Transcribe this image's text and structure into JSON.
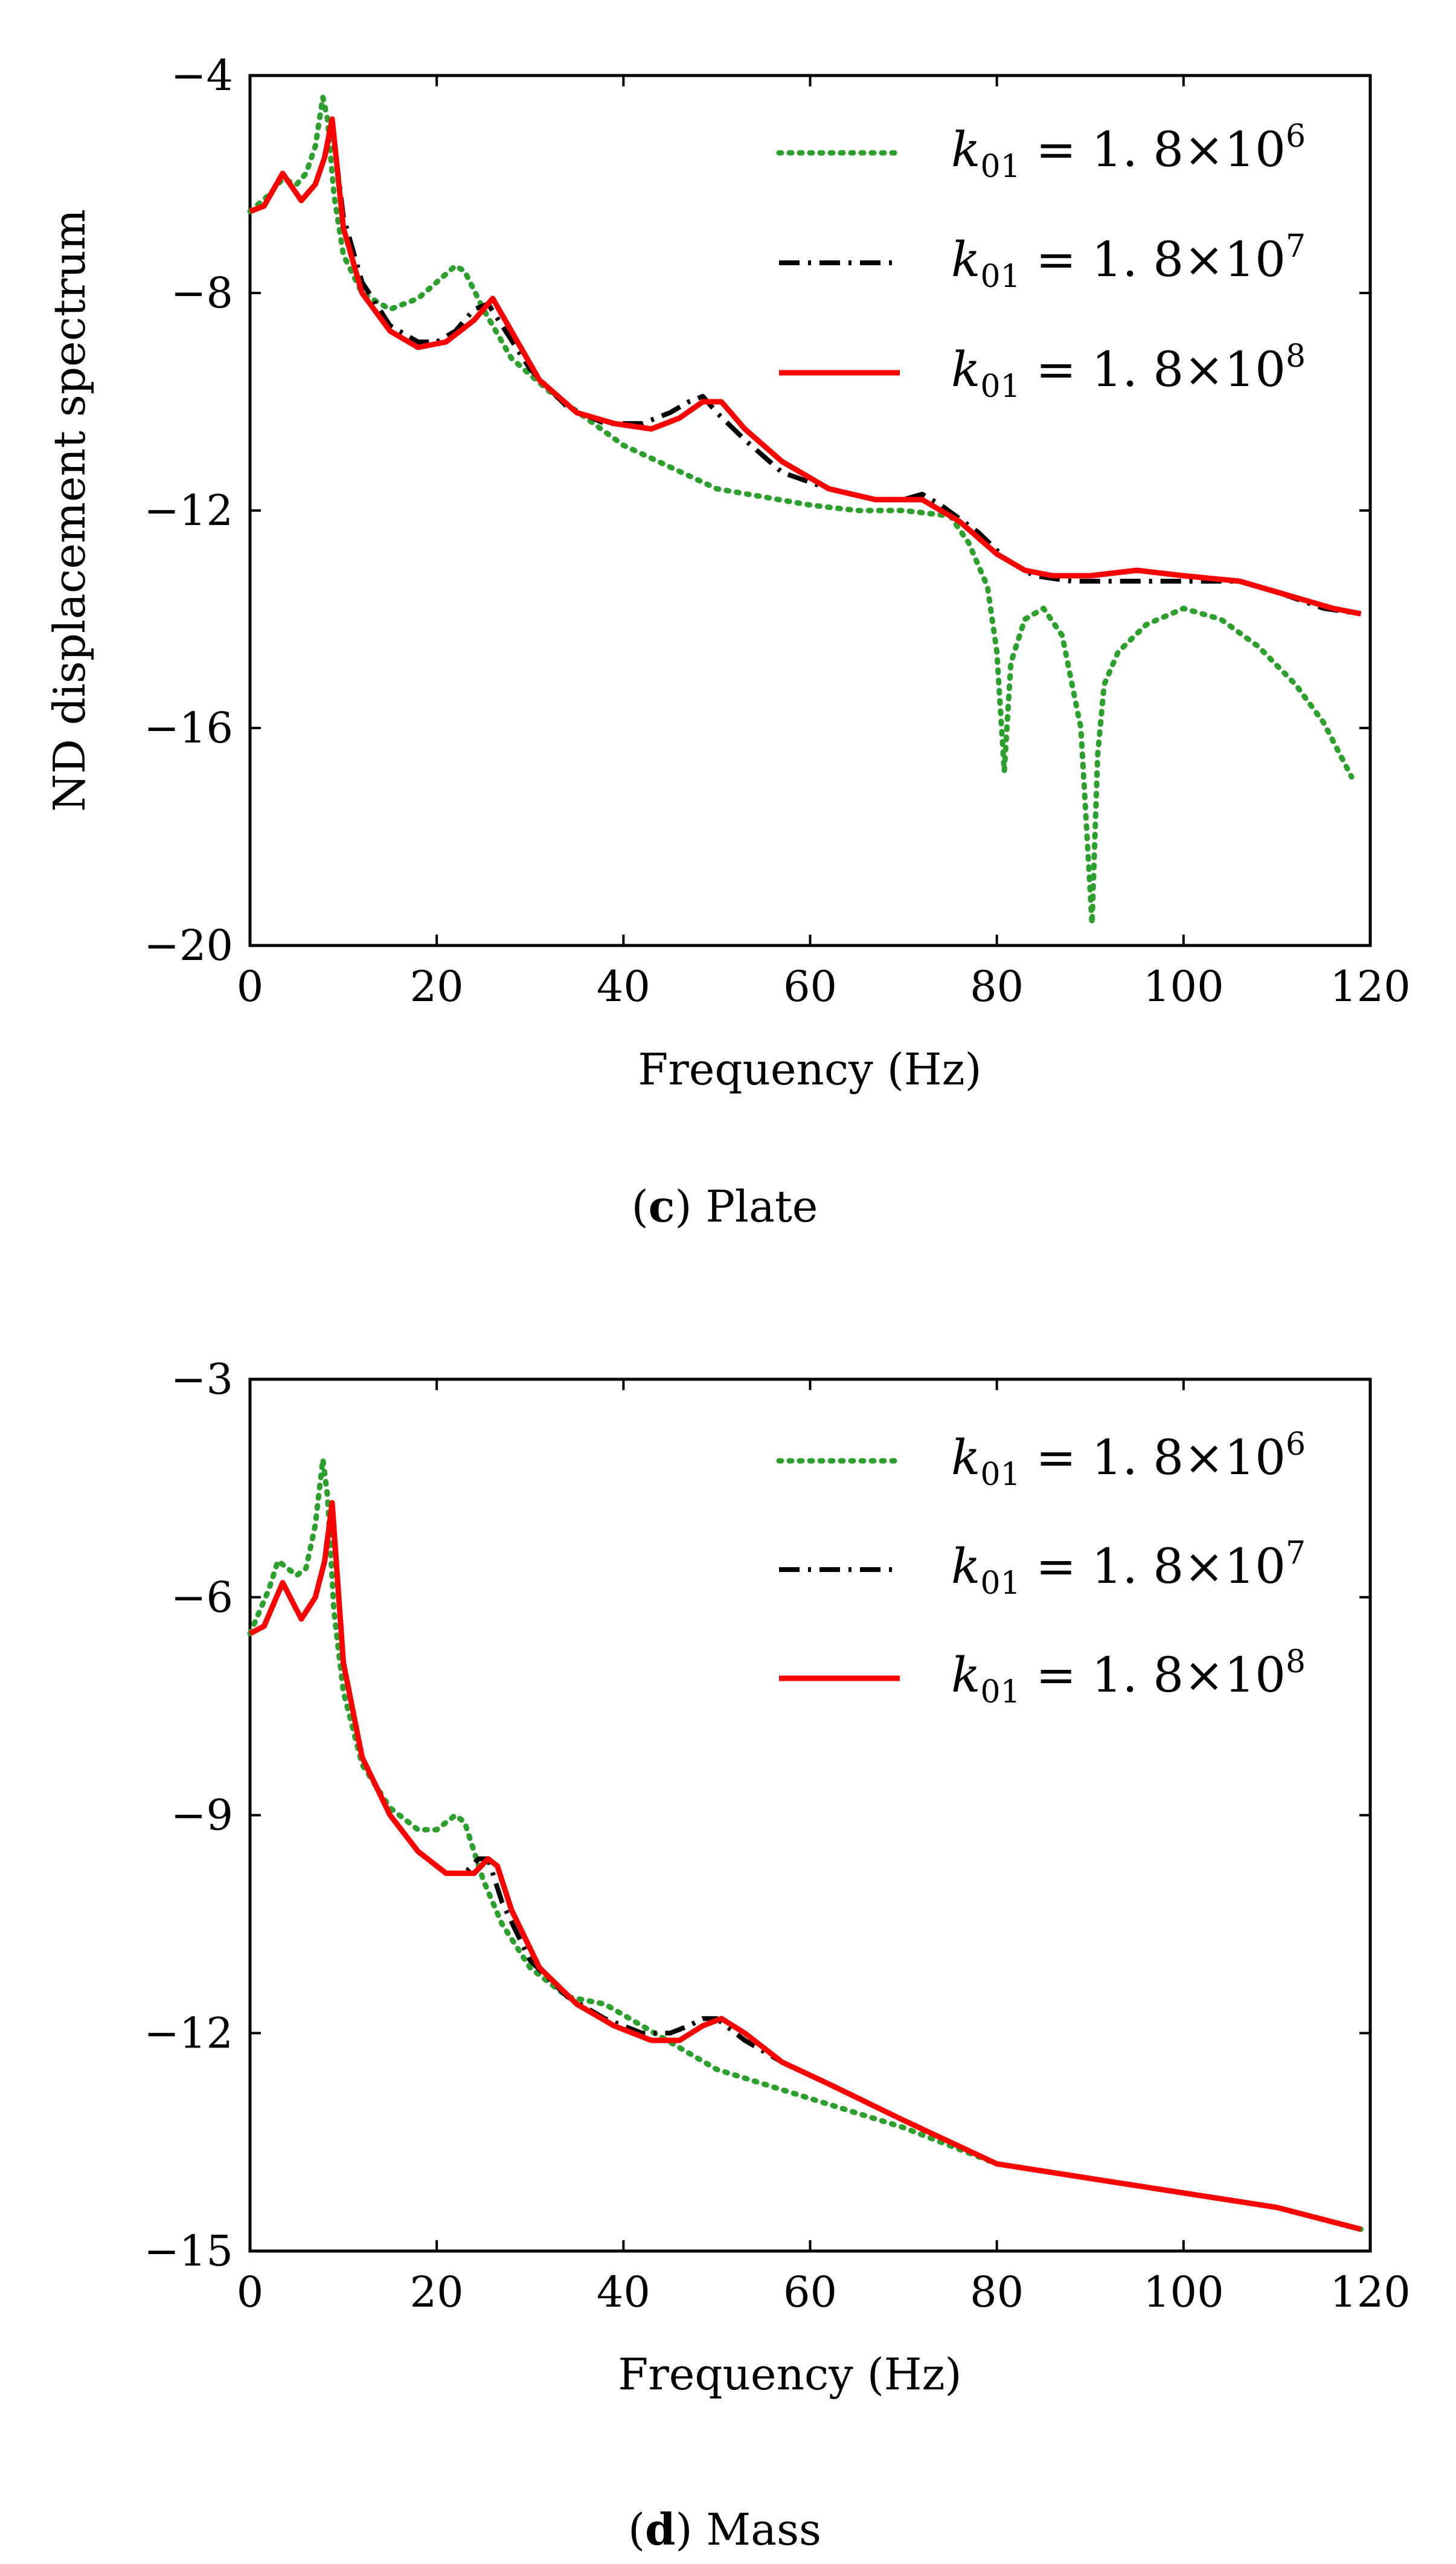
{
  "chart_data": [
    {
      "type": "line",
      "panel_id": "c",
      "caption_letter": "c",
      "caption_text": ") Plate",
      "caption_open": "(",
      "title": "",
      "xlabel": "Frequency (Hz)",
      "ylabel": "ND displacement spectrum",
      "xlim": [
        0,
        120
      ],
      "ylim": [
        -20,
        -4
      ],
      "xticks": [
        0,
        20,
        40,
        60,
        80,
        100,
        120
      ],
      "yticks": [
        -20,
        -16,
        -12,
        -8,
        -4
      ],
      "xtick_labels": [
        "0",
        "20",
        "40",
        "60",
        "80",
        "100",
        "120"
      ],
      "ytick_labels": [
        "−20",
        "−16",
        "−12",
        "−8",
        "−4"
      ],
      "legend_position": "top-right",
      "series": [
        {
          "name": "k01 = 1.8×10^6",
          "legend": {
            "k": "k",
            "sub": "01",
            "eq": " = 1. 8×10",
            "sup": "6"
          },
          "color": "#2ca02c",
          "style": "dotted",
          "x": [
            0,
            2,
            3.5,
            5,
            6,
            7,
            7.8,
            8.3,
            9,
            10,
            12,
            15,
            18,
            20,
            22,
            23,
            25,
            28,
            32,
            40,
            50,
            60,
            65,
            70,
            75,
            77,
            79,
            80,
            80.8,
            81.5,
            83,
            85,
            87,
            89,
            90.2,
            90.8,
            91.5,
            93,
            96,
            100,
            104,
            108,
            112,
            115,
            118
          ],
          "y": [
            -6.5,
            -6.2,
            -5.9,
            -6.0,
            -5.8,
            -5.3,
            -4.4,
            -4.8,
            -6.2,
            -7.3,
            -8.0,
            -8.3,
            -8.1,
            -7.8,
            -7.5,
            -7.6,
            -8.3,
            -9.2,
            -9.8,
            -10.8,
            -11.6,
            -11.9,
            -12.0,
            -12.0,
            -12.1,
            -12.6,
            -13.4,
            -14.6,
            -16.8,
            -14.8,
            -14.0,
            -13.8,
            -14.3,
            -16.0,
            -19.6,
            -16.5,
            -15.2,
            -14.6,
            -14.1,
            -13.8,
            -14.0,
            -14.5,
            -15.2,
            -15.9,
            -16.9
          ]
        },
        {
          "name": "k01 = 1.8×10^7",
          "legend": {
            "k": "k",
            "sub": "01",
            "eq": " = 1. 8×10",
            "sup": "7"
          },
          "color": "#000000",
          "style": "dashdot",
          "x": [
            0,
            1.5,
            3.5,
            5.5,
            7,
            8,
            8.8,
            10,
            12,
            15,
            18,
            20,
            22,
            24,
            25.5,
            27,
            30,
            34,
            38,
            42,
            45,
            47,
            48.5,
            50,
            53,
            57,
            62,
            67,
            70,
            72,
            74,
            78,
            81,
            84,
            88,
            92,
            96,
            100,
            106,
            110,
            115,
            119
          ],
          "y": [
            -6.5,
            -6.4,
            -5.8,
            -6.3,
            -6.0,
            -5.5,
            -4.9,
            -6.6,
            -7.8,
            -8.6,
            -8.9,
            -8.9,
            -8.7,
            -8.3,
            -8.2,
            -8.6,
            -9.4,
            -10.1,
            -10.4,
            -10.4,
            -10.2,
            -10.0,
            -9.9,
            -10.2,
            -10.7,
            -11.3,
            -11.6,
            -11.8,
            -11.8,
            -11.7,
            -11.9,
            -12.4,
            -12.9,
            -13.2,
            -13.3,
            -13.3,
            -13.3,
            -13.3,
            -13.3,
            -13.5,
            -13.8,
            -13.9
          ]
        },
        {
          "name": "k01 = 1.8×10^8",
          "legend": {
            "k": "k",
            "sub": "01",
            "eq": " = 1. 8×10",
            "sup": "8"
          },
          "color": "#ff0000",
          "style": "solid",
          "x": [
            0,
            1.5,
            3.5,
            5.5,
            7,
            8,
            8.8,
            10,
            12,
            15,
            18,
            21,
            24,
            26,
            28,
            31,
            35,
            39,
            43,
            46,
            48.5,
            50.5,
            53,
            57,
            62,
            67,
            70,
            72,
            76,
            80,
            83,
            86,
            90,
            95,
            100,
            106,
            112,
            116,
            119
          ],
          "y": [
            -6.5,
            -6.4,
            -5.8,
            -6.3,
            -6.0,
            -5.5,
            -4.8,
            -6.8,
            -8.0,
            -8.7,
            -9.0,
            -8.9,
            -8.5,
            -8.1,
            -8.7,
            -9.6,
            -10.2,
            -10.4,
            -10.5,
            -10.3,
            -10.0,
            -10.0,
            -10.5,
            -11.1,
            -11.6,
            -11.8,
            -11.8,
            -11.8,
            -12.2,
            -12.8,
            -13.1,
            -13.2,
            -13.2,
            -13.1,
            -13.2,
            -13.3,
            -13.6,
            -13.8,
            -13.9
          ]
        }
      ]
    },
    {
      "type": "line",
      "panel_id": "d",
      "caption_letter": "d",
      "caption_text": ") Mass",
      "caption_open": "(",
      "title": "",
      "xlabel": "Frequency (Hz)",
      "ylabel": "",
      "xlim": [
        0,
        120
      ],
      "ylim": [
        -15,
        -3
      ],
      "xticks": [
        0,
        20,
        40,
        60,
        80,
        100,
        120
      ],
      "yticks": [
        -15,
        -12,
        -9,
        -6,
        -3
      ],
      "xtick_labels": [
        "0",
        "20",
        "40",
        "60",
        "80",
        "100",
        "120"
      ],
      "ytick_labels": [
        "−15",
        "−12",
        "−9",
        "−6",
        "−3"
      ],
      "legend_position": "top-right",
      "series": [
        {
          "name": "k01 = 1.8×10^6",
          "legend": {
            "k": "k",
            "sub": "01",
            "eq": " = 1. 8×10",
            "sup": "6"
          },
          "color": "#2ca02c",
          "style": "dotted",
          "x": [
            0,
            2,
            3,
            5,
            6,
            7,
            7.8,
            8.3,
            9,
            10,
            12,
            15,
            18,
            20,
            22,
            23,
            25,
            27,
            30,
            34,
            38,
            42,
            46,
            50,
            55,
            60,
            70,
            80,
            90,
            100,
            110,
            119
          ],
          "y": [
            -6.5,
            -5.9,
            -5.5,
            -5.7,
            -5.6,
            -5.0,
            -4.1,
            -4.6,
            -6.2,
            -7.3,
            -8.3,
            -8.9,
            -9.2,
            -9.2,
            -9.0,
            -9.1,
            -9.9,
            -10.5,
            -11.1,
            -11.5,
            -11.6,
            -11.9,
            -12.2,
            -12.5,
            -12.7,
            -12.9,
            -13.3,
            -13.8,
            -14.0,
            -14.2,
            -14.4,
            -14.7
          ]
        },
        {
          "name": "k01 = 1.8×10^7",
          "legend": {
            "k": "k",
            "sub": "01",
            "eq": " = 1. 8×10",
            "sup": "7"
          },
          "color": "#000000",
          "style": "dashdot",
          "x": [
            0,
            1.5,
            3.5,
            5.5,
            7,
            8,
            8.8,
            10,
            12,
            15,
            18,
            21,
            23,
            24.5,
            25.5,
            27,
            30,
            34,
            38,
            42,
            45,
            47,
            48.5,
            50,
            53,
            57,
            62,
            70,
            80,
            90,
            100,
            110,
            119
          ],
          "y": [
            -6.5,
            -6.4,
            -5.8,
            -6.3,
            -6.0,
            -5.5,
            -4.8,
            -6.9,
            -8.2,
            -9.0,
            -9.5,
            -9.8,
            -9.8,
            -9.6,
            -9.6,
            -10.2,
            -11.0,
            -11.5,
            -11.8,
            -12.0,
            -12.0,
            -11.9,
            -11.8,
            -11.8,
            -12.1,
            -12.4,
            -12.7,
            -13.2,
            -13.8,
            -14.0,
            -14.2,
            -14.4,
            -14.7
          ]
        },
        {
          "name": "k01 = 1.8×10^8",
          "legend": {
            "k": "k",
            "sub": "01",
            "eq": " = 1. 8×10",
            "sup": "8"
          },
          "color": "#ff0000",
          "style": "solid",
          "x": [
            0,
            1.5,
            3.5,
            5.5,
            7,
            8,
            8.8,
            10,
            12,
            15,
            18,
            21,
            24,
            25.5,
            26.5,
            28,
            31,
            35,
            39,
            43,
            46,
            48.5,
            50.5,
            53,
            57,
            62,
            70,
            80,
            90,
            100,
            110,
            119
          ],
          "y": [
            -6.5,
            -6.4,
            -5.8,
            -6.3,
            -6.0,
            -5.5,
            -4.7,
            -6.9,
            -8.2,
            -9.0,
            -9.5,
            -9.8,
            -9.8,
            -9.6,
            -9.7,
            -10.3,
            -11.1,
            -11.6,
            -11.9,
            -12.1,
            -12.1,
            -11.9,
            -11.8,
            -12.0,
            -12.4,
            -12.7,
            -13.2,
            -13.8,
            -14.0,
            -14.2,
            -14.4,
            -14.7
          ]
        }
      ]
    }
  ]
}
